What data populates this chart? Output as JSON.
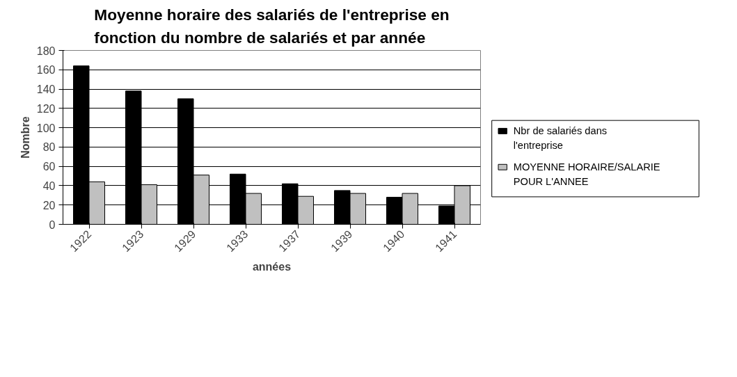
{
  "chart_data": {
    "type": "bar",
    "title": "Moyenne horaire des salariés de l'entreprise en fonction du nombre de salariés et par année",
    "xlabel": "années",
    "ylabel": "Nombre",
    "categories": [
      "1922",
      "1923",
      "1929",
      "1933",
      "1937",
      "1939",
      "1940",
      "1941"
    ],
    "series": [
      {
        "name": "Nbr de salariés dans l'entreprise",
        "color": "#000000",
        "values": [
          164,
          138,
          130,
          52,
          42,
          35,
          28,
          19
        ]
      },
      {
        "name": "MOYENNE HORAIRE/SALARIE POUR L'ANNEE",
        "color": "#c0c0c0",
        "values": [
          44,
          41,
          51,
          32,
          29,
          32,
          32,
          40
        ]
      }
    ],
    "ylim": [
      0,
      180
    ],
    "yticks": [
      0,
      20,
      40,
      60,
      80,
      100,
      120,
      140,
      160,
      180
    ],
    "grid": "y",
    "legend": "right"
  }
}
